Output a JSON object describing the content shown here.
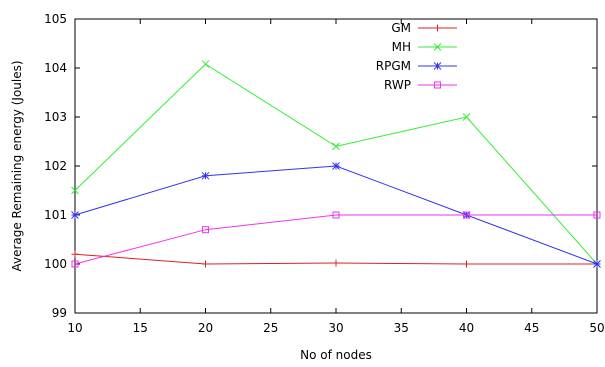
{
  "chart_data": {
    "type": "line",
    "title": "",
    "xlabel": "No of nodes",
    "ylabel": "Average Remaining energy (Joules)",
    "xlim": [
      10,
      50
    ],
    "ylim": [
      99,
      105
    ],
    "xticks": [
      "10",
      "15",
      "20",
      "25",
      "30",
      "35",
      "40",
      "45",
      "50"
    ],
    "yticks": [
      "99",
      "100",
      "101",
      "102",
      "103",
      "104",
      "105"
    ],
    "grid": false,
    "legend_position": "top-right",
    "x": [
      10,
      20,
      30,
      40,
      50
    ],
    "series": [
      {
        "name": "GM",
        "color": "#e02020",
        "marker": "plus",
        "values": [
          100.2,
          100.0,
          100.02,
          100.0,
          100.0
        ]
      },
      {
        "name": "MH",
        "color": "#33ee33",
        "marker": "cross",
        "values": [
          101.5,
          104.08,
          102.4,
          103.0,
          100.0
        ]
      },
      {
        "name": "RPGM",
        "color": "#3333ee",
        "marker": "star",
        "values": [
          101.0,
          101.8,
          102.0,
          101.0,
          100.0
        ]
      },
      {
        "name": "RWP",
        "color": "#ee33ee",
        "marker": "square",
        "values": [
          100.0,
          100.7,
          101.0,
          101.0,
          101.0
        ]
      }
    ]
  }
}
